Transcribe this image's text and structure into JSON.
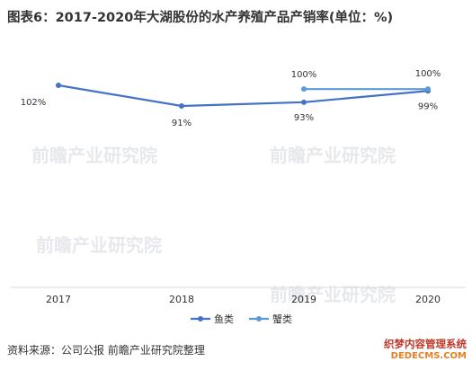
{
  "chart_title": "图表6：2017-2020年大湖股份的水产养殖产品产销率(单位：%)",
  "source_text": "资料来源：公司公报 前瞻产业研究院整理",
  "watermark_text": "前瞻产业研究院",
  "brand": {
    "line1": "织梦内容管理系统",
    "line2": "DEDECMS.COM"
  },
  "colors": {
    "fish": "#4472c4",
    "crab": "#5b9bd5"
  },
  "chart_data": {
    "type": "line",
    "title": "图表6：2017-2020年大湖股份的水产养殖产品产销率(单位：%)",
    "x": [
      "2017",
      "2018",
      "2019",
      "2020"
    ],
    "ylim": [
      0,
      110
    ],
    "grid": false,
    "legend_position": "bottom",
    "series": [
      {
        "name": "鱼类",
        "values": [
          102,
          91,
          93,
          99
        ],
        "labels": [
          "102%",
          "91%",
          "93%",
          "99%"
        ]
      },
      {
        "name": "蟹类",
        "values": [
          null,
          null,
          100,
          100
        ],
        "labels": [
          "",
          "",
          "100%",
          "100%"
        ]
      }
    ]
  }
}
